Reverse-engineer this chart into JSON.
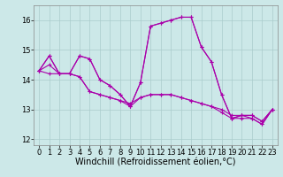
{
  "bg_color": "#cce8e8",
  "line_color": "#aa00aa",
  "xlim": [
    -0.5,
    23.5
  ],
  "ylim": [
    11.8,
    16.5
  ],
  "yticks": [
    12,
    13,
    14,
    15,
    16
  ],
  "xticks": [
    0,
    1,
    2,
    3,
    4,
    5,
    6,
    7,
    8,
    9,
    10,
    11,
    12,
    13,
    14,
    15,
    16,
    17,
    18,
    19,
    20,
    21,
    22,
    23
  ],
  "grid_color": "#aacccc",
  "tick_label_fontsize": 6,
  "xlabel_fontsize": 7,
  "xlabel": "Windchill (Refroidissement éolien,°C)",
  "series": [
    [
      14.3,
      14.8,
      14.2,
      14.2,
      14.8,
      14.7,
      14.0,
      13.8,
      13.5,
      13.1,
      13.9,
      15.8,
      15.9,
      16.0,
      16.1,
      16.1,
      15.1,
      14.6,
      13.5,
      12.7,
      12.8,
      12.8,
      12.6,
      13.0
    ],
    [
      14.3,
      14.8,
      14.2,
      14.2,
      14.8,
      14.7,
      14.0,
      13.8,
      13.5,
      13.1,
      13.9,
      15.8,
      15.9,
      16.0,
      16.1,
      16.1,
      15.1,
      14.6,
      13.5,
      12.7,
      12.8,
      12.8,
      12.6,
      13.0
    ],
    [
      14.3,
      14.5,
      14.2,
      14.2,
      14.1,
      13.6,
      13.5,
      13.4,
      13.3,
      13.1,
      13.4,
      13.5,
      13.5,
      13.5,
      13.4,
      13.3,
      13.2,
      13.1,
      13.0,
      12.8,
      12.8,
      12.7,
      12.5,
      13.0
    ],
    [
      14.3,
      14.2,
      14.2,
      14.2,
      14.1,
      13.6,
      13.5,
      13.4,
      13.3,
      13.2,
      13.4,
      13.5,
      13.5,
      13.5,
      13.4,
      13.3,
      13.2,
      13.1,
      12.9,
      12.7,
      12.7,
      12.7,
      12.5,
      13.0
    ]
  ]
}
